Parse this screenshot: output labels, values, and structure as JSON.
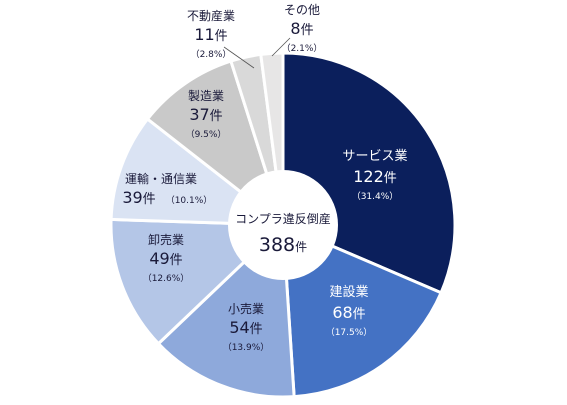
{
  "chart_data": {
    "type": "pie",
    "title": "",
    "center_text": {
      "line1": "コンプラ違反倒産",
      "total": "388",
      "unit": "件"
    },
    "slices": [
      {
        "name": "サービス業",
        "count": "122",
        "unit": "件",
        "pct": "（31.4%）",
        "value": 122,
        "color": "#0b1f5c",
        "label_color": "#ffffff"
      },
      {
        "name": "建設業",
        "count": "68",
        "unit": "件",
        "pct": "（17.5%）",
        "value": 68,
        "color": "#4472c4",
        "label_color": "#ffffff"
      },
      {
        "name": "小売業",
        "count": "54",
        "unit": "件",
        "pct": "（13.9%）",
        "value": 54,
        "color": "#8ea9db",
        "label_color": "#1a1a3a"
      },
      {
        "name": "卸売業",
        "count": "49",
        "unit": "件",
        "pct": "（12.6%）",
        "value": 49,
        "color": "#b4c6e7",
        "label_color": "#1a1a3a"
      },
      {
        "name": "運輸・通信業",
        "count": "39",
        "unit": "件",
        "pct": "（10.1%）",
        "value": 39,
        "color": "#dae3f3",
        "label_color": "#1a1a3a"
      },
      {
        "name": "製造業",
        "count": "37",
        "unit": "件",
        "pct": "（9.5%）",
        "value": 37,
        "color": "#c9c9c9",
        "label_color": "#1a1a3a"
      },
      {
        "name": "不動産業",
        "count": "11",
        "unit": "件",
        "pct": "（2.8%）",
        "value": 11,
        "color": "#d9d9d9",
        "label_color": "#1a1a3a"
      },
      {
        "name": "その他",
        "count": "8",
        "unit": "件",
        "pct": "（2.1%）",
        "value": 8,
        "color": "#e7e6e6",
        "label_color": "#1a1a3a"
      }
    ]
  }
}
